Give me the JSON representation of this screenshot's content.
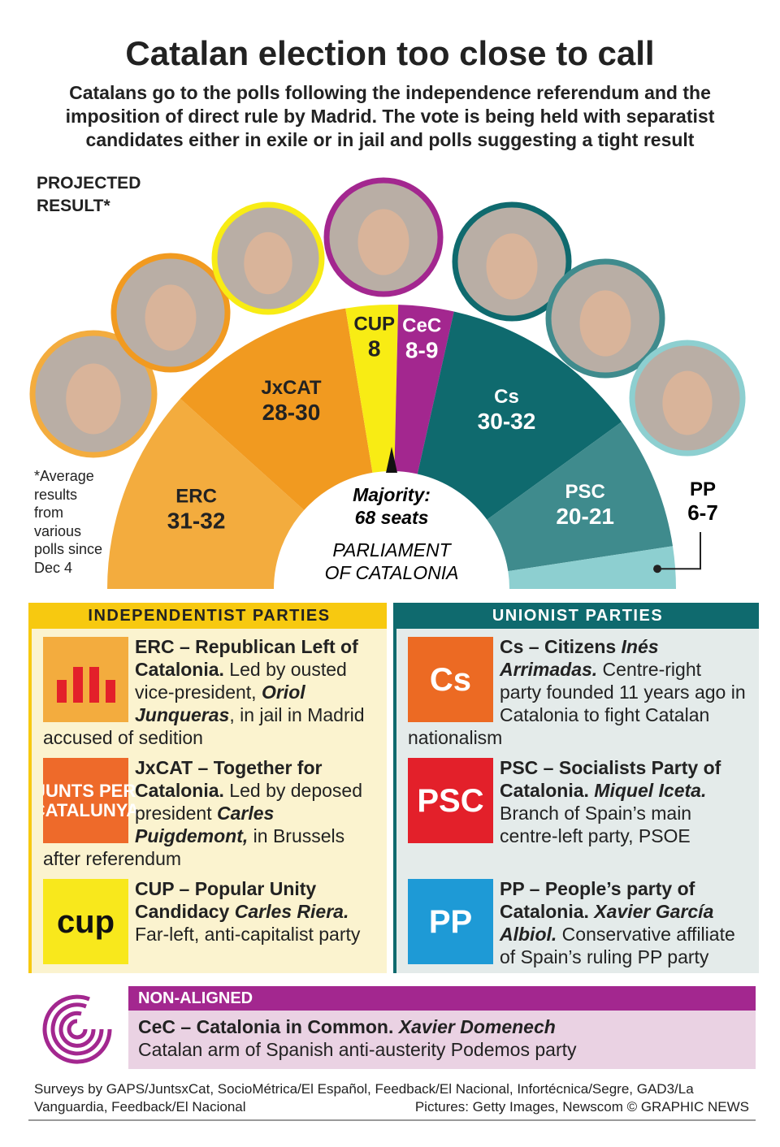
{
  "header": {
    "title": "Catalan election too close to call",
    "subtitle": "Catalans go to the polls following the independence referendum and the imposition of direct rule by Madrid. The vote is being held with separatist candidates either in exile or in jail and polls suggesting a tight result"
  },
  "projected_label": "PROJECTED RESULT*",
  "note": "*Average results from various polls since Dec 4",
  "parliament": {
    "majority_label": "Majority:",
    "majority_seats": "68 seats",
    "label": "PARLIAMENT OF CATALONIA",
    "parties": [
      {
        "name": "ERC",
        "seats": {
          "min": 31,
          "max": 32,
          "label": "31-32"
        },
        "color": "#f3ac3e"
      },
      {
        "name": "JxCAT",
        "seats": {
          "min": 28,
          "max": 30,
          "label": "28-30"
        },
        "color": "#f19a20"
      },
      {
        "name": "CUP",
        "seats": {
          "min": 8,
          "max": 8,
          "label": "8"
        },
        "color": "#f8ec14"
      },
      {
        "name": "CeC",
        "seats": {
          "min": 8,
          "max": 9,
          "label": "8-9"
        },
        "color": "#a3278f"
      },
      {
        "name": "Cs",
        "seats": {
          "min": 30,
          "max": 32,
          "label": "30-32"
        },
        "color": "#0f6a6e"
      },
      {
        "name": "PSC",
        "seats": {
          "min": 20,
          "max": 21,
          "label": "20-21"
        },
        "color": "#3f8b8d"
      },
      {
        "name": "PP",
        "seats": {
          "min": 6,
          "max": 7,
          "label": "6-7"
        },
        "color": "#8dcfd0"
      }
    ]
  },
  "sections": [
    {
      "title": "INDEPENDENTIST PARTIES",
      "entries": [
        {
          "logo_color": "#f3ac3e",
          "parts": [
            {
              "text": "ERC – Republican Left of Catalonia.",
              "style": "bold"
            },
            {
              "text": " Led by ousted vice-president, ",
              "style": "normal"
            },
            {
              "text": "Oriol Junqueras",
              "style": "bold-italic"
            },
            {
              "text": ", in jail in Madrid accused of sedition",
              "style": "normal"
            }
          ]
        },
        {
          "logo": "JUNTS PER CATALUNYA",
          "logo_color": "#ee6a2a",
          "parts": [
            {
              "text": "JxCAT – Together for Catalonia.",
              "style": "bold"
            },
            {
              "text": " Led by deposed president ",
              "style": "normal"
            },
            {
              "text": "Carles Puigdemont,",
              "style": "bold-italic"
            },
            {
              "text": " in Brussels after referendum",
              "style": "normal"
            }
          ]
        },
        {
          "logo": "cup",
          "logo_color": "#f8e81c",
          "parts": [
            {
              "text": "CUP – Popular Unity Candidacy ",
              "style": "bold"
            },
            {
              "text": "Carles Riera.",
              "style": "bold-italic"
            },
            {
              "text": " Far-left, anti-capitalist party",
              "style": "normal"
            }
          ]
        }
      ]
    },
    {
      "title": "UNIONIST PARTIES",
      "entries": [
        {
          "logo": "Cs",
          "logo_color": "#ec6a23",
          "parts": [
            {
              "text": "Cs – Citizens ",
              "style": "bold"
            },
            {
              "text": "Inés Arrimadas.",
              "style": "bold-italic"
            },
            {
              "text": " Centre-right party founded 11 years ago in Catalonia to fight Catalan nationalism",
              "style": "normal"
            }
          ]
        },
        {
          "logo": "PSC",
          "logo_color": "#e3202a",
          "parts": [
            {
              "text": "PSC – Socialists Party of Catalonia.",
              "style": "bold"
            },
            {
              "text": " Miquel Iceta.",
              "style": "bold-italic"
            },
            {
              "text": " Branch of Spain’s main centre-left party, PSOE",
              "style": "normal"
            }
          ]
        },
        {
          "logo": "PP",
          "logo_color": "#1e9ad6",
          "parts": [
            {
              "text": "PP – People’s party of Catalonia.",
              "style": "bold"
            },
            {
              "text": " Xavier García Albiol.",
              "style": "bold-italic"
            },
            {
              "text": " Conservative affiliate of Spain’s ruling PP party",
              "style": "normal"
            }
          ]
        }
      ]
    }
  ],
  "non_aligned": {
    "title": "NON-ALIGNED",
    "parts": [
      {
        "text": "CeC – Catalonia in Common.",
        "style": "bold"
      },
      {
        "text": " Xavier Domenech",
        "style": "bold-italic"
      },
      {
        "text": "Catalan arm of Spanish anti-austerity Podemos party",
        "style": "line"
      }
    ]
  },
  "footer": {
    "sources": "Surveys by GAPS/JuntsxCat, SocioMétrica/El Español, Feedback/El Nacional, Infortécnica/Segre, GAD3/La Vanguardia, Feedback/El Nacional",
    "credits": "Pictures: Getty Images, Newscom  © GRAPHIC NEWS"
  }
}
